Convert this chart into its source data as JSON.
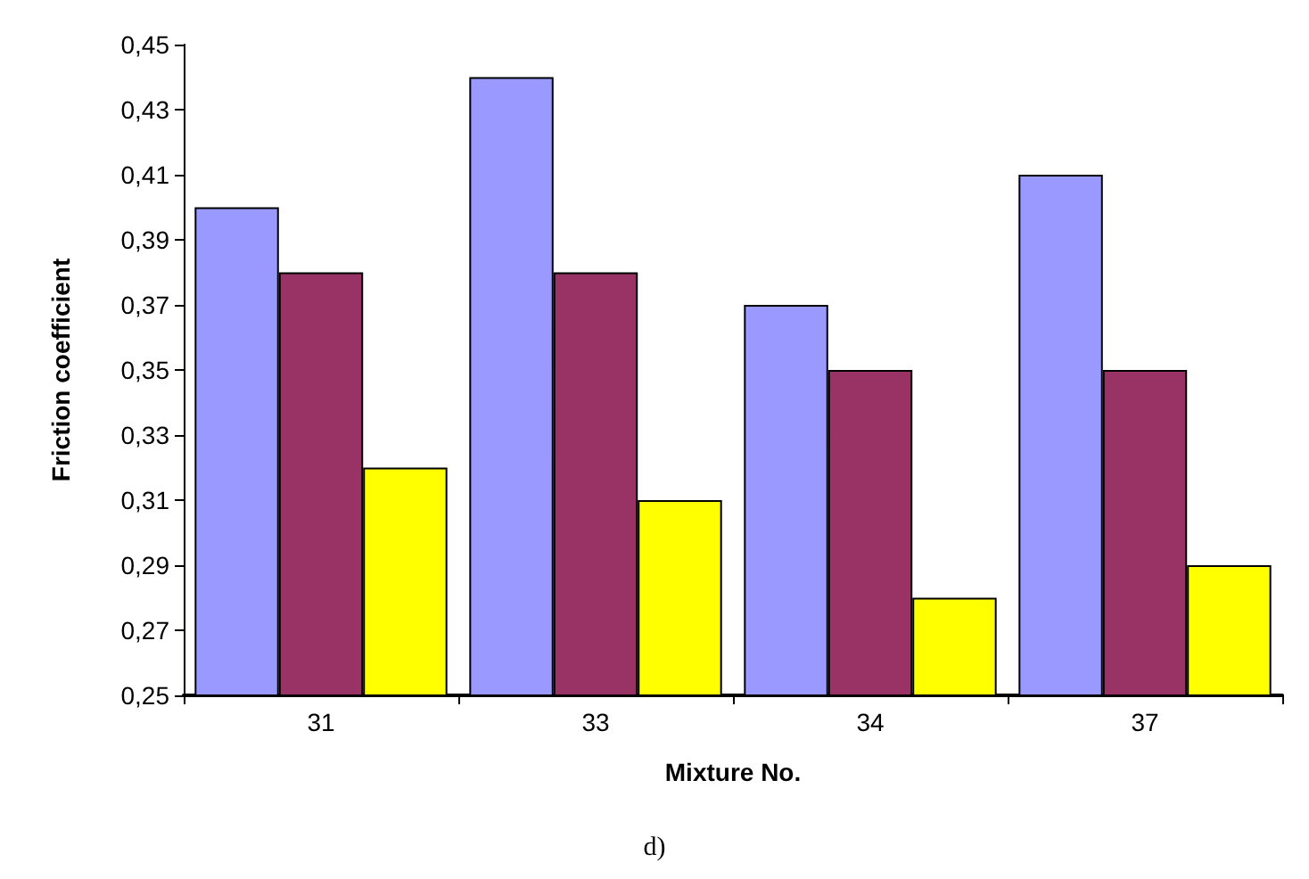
{
  "chart_data": {
    "type": "bar",
    "xlabel": "Mixture No.",
    "ylabel": "Friction coefficient",
    "categories": [
      "31",
      "33",
      "34",
      "37"
    ],
    "series": [
      {
        "color": "#9999ff",
        "values": [
          0.4,
          0.44,
          0.37,
          0.41
        ]
      },
      {
        "color": "#993366",
        "values": [
          0.38,
          0.38,
          0.35,
          0.35
        ]
      },
      {
        "color": "#ffff00",
        "values": [
          0.32,
          0.31,
          0.28,
          0.29
        ]
      }
    ],
    "ylim": [
      0.25,
      0.45
    ],
    "yticks": [
      {
        "value": 0.25,
        "label": "0,25"
      },
      {
        "value": 0.27,
        "label": "0,27"
      },
      {
        "value": 0.29,
        "label": "0,29"
      },
      {
        "value": 0.31,
        "label": "0,31"
      },
      {
        "value": 0.33,
        "label": "0,33"
      },
      {
        "value": 0.35,
        "label": "0,35"
      },
      {
        "value": 0.37,
        "label": "0,37"
      },
      {
        "value": 0.39,
        "label": "0,39"
      },
      {
        "value": 0.41,
        "label": "0,41"
      },
      {
        "value": 0.43,
        "label": "0,43"
      },
      {
        "value": 0.45,
        "label": "0,45"
      }
    ],
    "grid": false,
    "annotations": [
      "d)"
    ]
  }
}
